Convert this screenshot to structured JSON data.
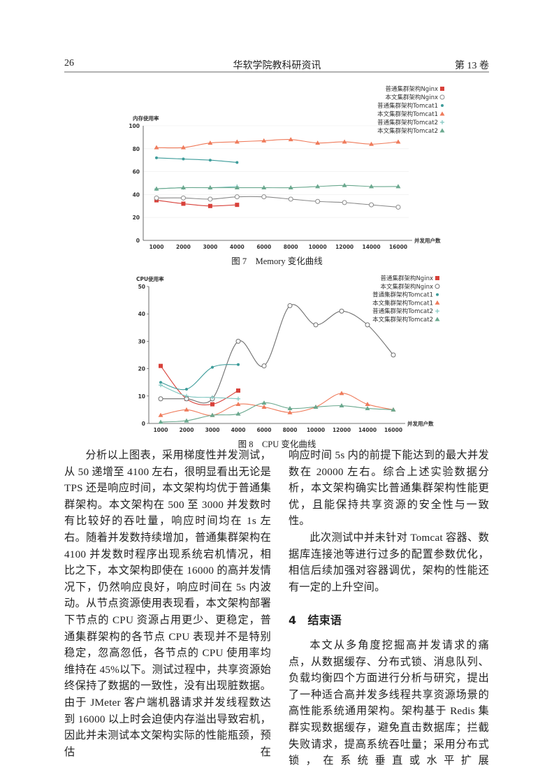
{
  "header": {
    "page_number": "26",
    "journal": "华软学院教科研资讯",
    "volume": "第 13 卷"
  },
  "chart_data": [
    {
      "type": "line",
      "caption": "图 7　Memory 变化曲线",
      "y_label": "内存使用率",
      "x_label": "并发用户数",
      "categories": [
        1000,
        2000,
        3000,
        4000,
        6000,
        8000,
        10000,
        12000,
        14000,
        16000
      ],
      "ylim": [
        0,
        100
      ],
      "yticks": [
        0,
        20,
        40,
        60,
        80,
        100
      ],
      "grid": true,
      "legend": "top-right",
      "series": [
        {
          "name": "普通集群架构Nginx",
          "color": "#d8413a",
          "marker": "square",
          "values": [
            35,
            32,
            30,
            31,
            null,
            null,
            null,
            null,
            null,
            null
          ]
        },
        {
          "name": "本文集群架构Nginx",
          "color": "#8a8a8a",
          "marker": "circle",
          "values": [
            37,
            37,
            36,
            38,
            38,
            36,
            34,
            33,
            31,
            29
          ]
        },
        {
          "name": "普通集群架构Tomcat1",
          "color": "#3d9c9a",
          "marker": "dot",
          "values": [
            72,
            71,
            70,
            68,
            null,
            null,
            null,
            null,
            null,
            null
          ]
        },
        {
          "name": "本文集群架构Tomcat1",
          "color": "#ef7b5b",
          "marker": "triangle",
          "values": [
            81,
            81,
            85,
            86,
            87,
            88,
            85,
            86,
            84,
            86
          ]
        },
        {
          "name": "普通集群架构Tomcat2",
          "color": "#7fc6c0",
          "marker": "plus",
          "values": [
            45,
            46,
            46,
            47,
            null,
            null,
            null,
            null,
            null,
            null
          ]
        },
        {
          "name": "本文集群架构Tomcat2",
          "color": "#6aa88e",
          "marker": "triangle",
          "values": [
            45,
            46,
            46,
            46,
            46,
            46,
            47,
            48,
            47,
            47
          ]
        }
      ]
    },
    {
      "type": "line",
      "caption": "图 8　CPU 变化曲线",
      "y_label": "CPU使用率",
      "x_label": "并发用户数",
      "categories": [
        1000,
        2000,
        3000,
        4000,
        6000,
        8000,
        10000,
        12000,
        14000,
        16000
      ],
      "ylim": [
        0,
        50
      ],
      "yticks": [
        0,
        10,
        20,
        30,
        40,
        50
      ],
      "grid": false,
      "legend": "top-right",
      "series": [
        {
          "name": "普通集群架构Nginx",
          "color": "#d8413a",
          "marker": "square",
          "values": [
            21,
            9,
            7,
            12,
            null,
            null,
            null,
            null,
            null,
            null
          ]
        },
        {
          "name": "本文集群架构Nginx",
          "color": "#6f6f6f",
          "marker": "circle",
          "values": [
            9,
            9,
            9,
            30,
            21,
            43,
            36,
            41,
            36,
            25
          ]
        },
        {
          "name": "普通集群架构Tomcat1",
          "color": "#3d9c9a",
          "marker": "dot",
          "values": [
            15,
            12.5,
            20.5,
            21.5,
            null,
            null,
            null,
            null,
            null,
            null
          ]
        },
        {
          "name": "本文集群架构Tomcat1",
          "color": "#ef7b5b",
          "marker": "triangle",
          "values": [
            3,
            5,
            3,
            7,
            6,
            4,
            6,
            11,
            7,
            5
          ]
        },
        {
          "name": "普通集群架构Tomcat2",
          "color": "#7fc6c0",
          "marker": "plus",
          "values": [
            14,
            10,
            9.5,
            9,
            null,
            null,
            null,
            null,
            null,
            null
          ]
        },
        {
          "name": "本文集群架构Tomcat2",
          "color": "#6aa88e",
          "marker": "triangle",
          "values": [
            0.5,
            1,
            3,
            3.5,
            7.5,
            5.5,
            6,
            6.5,
            5.5,
            5
          ]
        }
      ]
    }
  ],
  "body": {
    "left": [
      "分析以上图表，采用梯度性并发测试，从 50 递增至 4100 左右，很明显看出无论是 TPS 还是响应时间，本文架构均优于普通集群架构。本文架构在 500 至 3000 并发数时有比较好的吞吐量，响应时间均在 1s 左右。随着并发数持续增加，普通集群架构在 4100 并发数时程序出现系统宕机情况，相比之下，本文架构即使在 16000 的高并发情况下，仍然响应良好，响应时间在 5s 内波动。从节点资源使用表现看，本文架构部署下节点的 CPU 资源占用更少、更稳定，普通集群架构的各节点 CPU 表现并不是特别稳定，忽高忽低，各节点的 CPU 使用率均维持在 45%以下。测试过程中，共享资源始终保持了数据的一致性，没有出现脏数据。由于 JMeter 客户端机器请求并发线程数达到 16000 以上时会迫使内存溢出导致宕机，因此并未测试本文架构实际的性能瓶颈，预估在"
    ],
    "right": [
      "响应时间 5s 内的前提下能达到的最大并发数在 20000 左右。综合上述实验数据分析，本文架构确实比普通集群架构性能更优，且能保持共享资源的安全性与一致性。",
      "此次测试中并未针对 Tomcat 容器、数据库连接池等进行过多的配置参数优化，相信后续加强对容器调优，架构的性能还有一定的上升空间。"
    ],
    "section": "4　结束语",
    "right_after": [
      "本文从多角度挖掘高并发请求的痛点，从数据缓存、分布式锁、消息队列、负载均衡四个方面进行分析与研究，提出了一种适合高并发多线程共享资源场景的高性能系统通用架构。架构基于 Redis 集群实现数据缓存，避免直击数据库；拦截失败请求，提高系统吞吐量；采用分布式锁，在系统垂直或水平扩展"
    ]
  }
}
